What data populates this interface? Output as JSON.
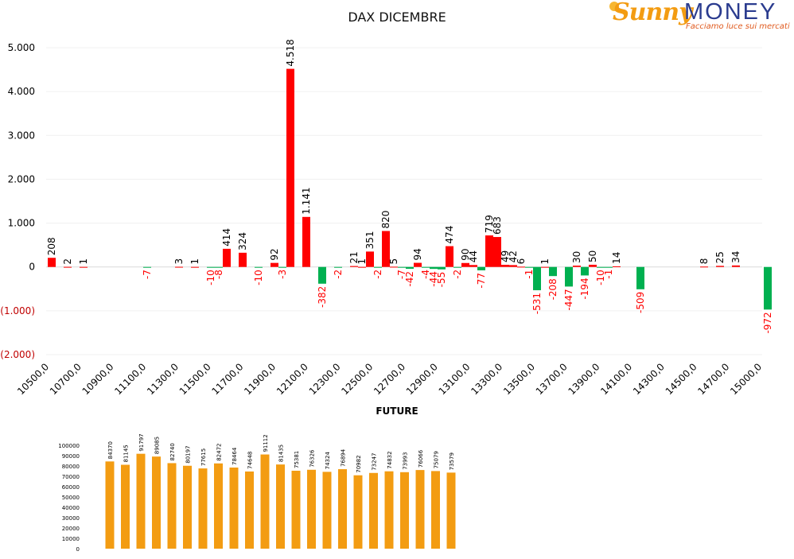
{
  "logo": {
    "script_text": "Sunny",
    "main_text": "MONEY",
    "tagline": "Facciamo luce sui mercati"
  },
  "colors": {
    "positive_bar": "#ff0000",
    "negative_bar": "#00b050",
    "future_bar": "#f39c12",
    "negative_label": "#ff0000",
    "axis_negative": "#c00000"
  },
  "chart_data": [
    {
      "type": "bar",
      "title": "DAX DICEMBRE",
      "ylim": [
        -2000,
        5000
      ],
      "yticks": [
        {
          "value": 5000,
          "label": "5.000"
        },
        {
          "value": 4000,
          "label": "4.000"
        },
        {
          "value": 3000,
          "label": "3.000"
        },
        {
          "value": 2000,
          "label": "2.000"
        },
        {
          "value": 1000,
          "label": "1.000"
        },
        {
          "value": 0,
          "label": "0"
        },
        {
          "value": -1000,
          "label": "(1.000)"
        },
        {
          "value": -2000,
          "label": "(2.000)"
        }
      ],
      "x_tick_labels": [
        "10500,0",
        "10700,0",
        "10900,0",
        "11100,0",
        "11300,0",
        "11500,0",
        "11700,0",
        "11900,0",
        "12100,0",
        "12300,0",
        "12500,0",
        "12700,0",
        "12900,0",
        "13100,0",
        "13300,0",
        "13500,0",
        "13700,0",
        "13900,0",
        "14100,0",
        "14300,0",
        "14500,0",
        "14700,0",
        "15000,0"
      ],
      "grid": true,
      "series": [
        {
          "values": [
            {
              "x": 10500,
              "y": 208
            },
            {
              "x": 10600,
              "y": 2
            },
            {
              "x": 10700,
              "y": 1
            },
            {
              "x": 11100,
              "y": -7
            },
            {
              "x": 11300,
              "y": 3
            },
            {
              "x": 11400,
              "y": 1
            },
            {
              "x": 11500,
              "y": -10
            },
            {
              "x": 11550,
              "y": -8
            },
            {
              "x": 11600,
              "y": 414
            },
            {
              "x": 11700,
              "y": 324
            },
            {
              "x": 11800,
              "y": -10
            },
            {
              "x": 11900,
              "y": 92
            },
            {
              "x": 11950,
              "y": -3
            },
            {
              "x": 12000,
              "y": 4518
            },
            {
              "x": 12100,
              "y": 1141
            },
            {
              "x": 12200,
              "y": -382
            },
            {
              "x": 12300,
              "y": -2
            },
            {
              "x": 12400,
              "y": 21
            },
            {
              "x": 12450,
              "y": 1
            },
            {
              "x": 12500,
              "y": 351
            },
            {
              "x": 12550,
              "y": -2
            },
            {
              "x": 12600,
              "y": 820
            },
            {
              "x": 12650,
              "y": 5
            },
            {
              "x": 12700,
              "y": -7
            },
            {
              "x": 12750,
              "y": -42
            },
            {
              "x": 12800,
              "y": 94
            },
            {
              "x": 12850,
              "y": -4
            },
            {
              "x": 12900,
              "y": -44
            },
            {
              "x": 12950,
              "y": -55
            },
            {
              "x": 13000,
              "y": 474
            },
            {
              "x": 13050,
              "y": -2
            },
            {
              "x": 13100,
              "y": 90
            },
            {
              "x": 13150,
              "y": 44
            },
            {
              "x": 13200,
              "y": -77
            },
            {
              "x": 13250,
              "y": 719
            },
            {
              "x": 13300,
              "y": 683
            },
            {
              "x": 13350,
              "y": 49
            },
            {
              "x": 13400,
              "y": 42
            },
            {
              "x": 13450,
              "y": 6
            },
            {
              "x": 13500,
              "y": -1
            },
            {
              "x": 13550,
              "y": -531
            },
            {
              "x": 13600,
              "y": 1
            },
            {
              "x": 13650,
              "y": -208
            },
            {
              "x": 13750,
              "y": -447
            },
            {
              "x": 13800,
              "y": 30
            },
            {
              "x": 13850,
              "y": -194
            },
            {
              "x": 13900,
              "y": 50
            },
            {
              "x": 13950,
              "y": -10
            },
            {
              "x": 14000,
              "y": -1
            },
            {
              "x": 14050,
              "y": 14
            },
            {
              "x": 14200,
              "y": -509
            },
            {
              "x": 14600,
              "y": 8
            },
            {
              "x": 14700,
              "y": 25
            },
            {
              "x": 14800,
              "y": 34
            },
            {
              "x": 15000,
              "y": -972
            }
          ]
        }
      ]
    },
    {
      "type": "bar",
      "title": "FUTURE",
      "ylim": [
        0,
        100000
      ],
      "yticks": [
        "0",
        "10000",
        "20000",
        "30000",
        "40000",
        "50000",
        "60000",
        "70000",
        "80000",
        "90000",
        "100000"
      ],
      "values": [
        84370,
        81145,
        91797,
        89085,
        82740,
        80197,
        77615,
        82472,
        78464,
        74648,
        91112,
        81435,
        75381,
        76326,
        74324,
        76894,
        70982,
        73247,
        74832,
        73993,
        76066,
        75079,
        73579
      ]
    }
  ]
}
